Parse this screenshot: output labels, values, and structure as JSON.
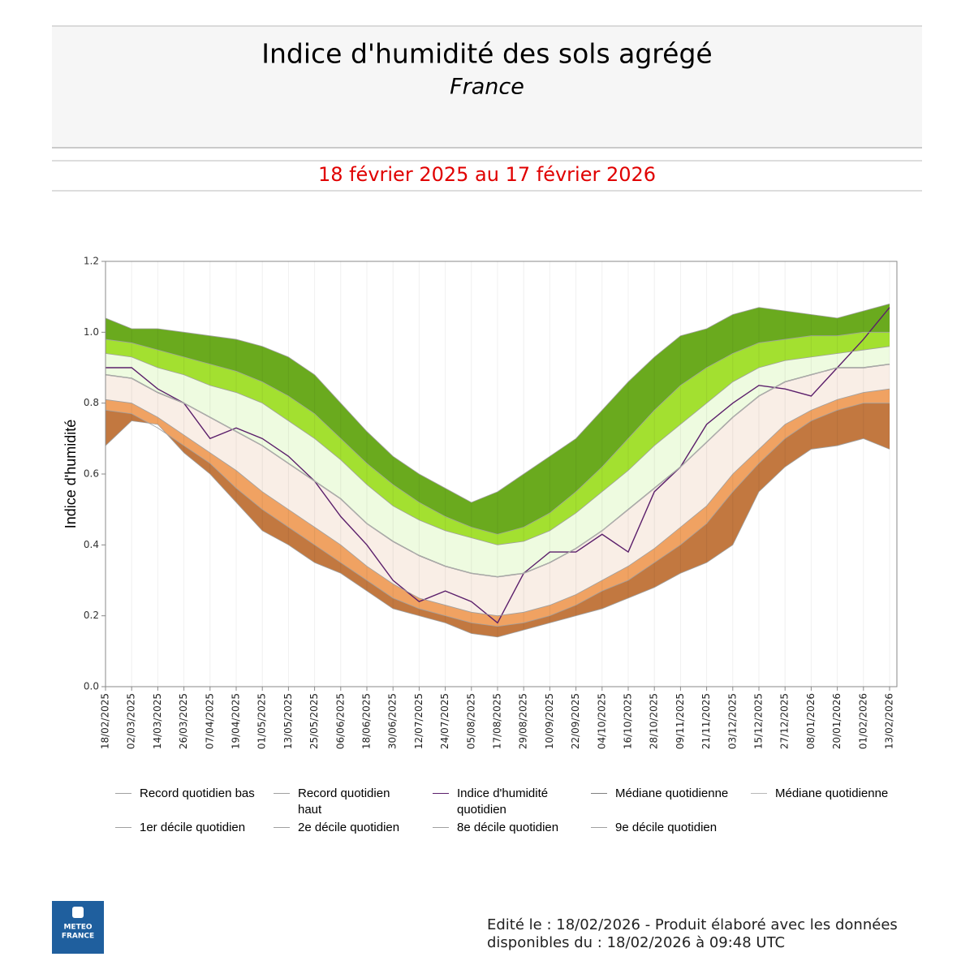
{
  "header": {
    "title": "Indice d'humidité des sols agrégé",
    "subtitle": "France"
  },
  "period": "18 février 2025 au 17 février 2026",
  "chart_data": {
    "type": "band",
    "y_label": "Indice d'humidité",
    "categories": [
      "18/02/2025",
      "02/03/2025",
      "14/03/2025",
      "26/03/2025",
      "07/04/2025",
      "19/04/2025",
      "01/05/2025",
      "13/05/2025",
      "25/05/2025",
      "06/06/2025",
      "18/06/2025",
      "30/06/2025",
      "12/07/2025",
      "24/07/2025",
      "05/08/2025",
      "17/08/2025",
      "29/08/2025",
      "10/09/2025",
      "22/09/2025",
      "04/10/2025",
      "16/10/2025",
      "28/10/2025",
      "09/11/2025",
      "21/11/2025",
      "03/12/2025",
      "15/12/2025",
      "27/12/2025",
      "08/01/2026",
      "20/01/2026",
      "01/02/2026",
      "13/02/2026"
    ],
    "ylim": [
      0,
      1.2
    ],
    "yticks": [
      {
        "value": 0,
        "label": "0.0"
      },
      {
        "value": 0.2,
        "label": "0.2"
      },
      {
        "value": 0.4,
        "label": "0.4"
      },
      {
        "value": 0.6,
        "label": "0.6"
      },
      {
        "value": 0.8,
        "label": "0.8"
      },
      {
        "value": 1,
        "label": "1.0"
      },
      {
        "value": 1.2,
        "label": "1.2"
      }
    ],
    "grid": true,
    "series": [
      {
        "name": "Record quotidien bas",
        "color": "#a0a0a0",
        "fill": "#ffffff",
        "values": [
          0.68,
          0.75,
          0.74,
          0.66,
          0.6,
          0.52,
          0.44,
          0.4,
          0.35,
          0.32,
          0.27,
          0.22,
          0.2,
          0.18,
          0.15,
          0.14,
          0.16,
          0.18,
          0.2,
          0.22,
          0.25,
          0.28,
          0.32,
          0.35,
          0.4,
          0.55,
          0.62,
          0.67,
          0.68,
          0.7,
          0.67
        ]
      },
      {
        "name": "Record quotidien haut",
        "color": "#a0a0a0",
        "fill": "#6aaa1e",
        "values": [
          1.04,
          1.01,
          1.01,
          1.0,
          0.99,
          0.98,
          0.96,
          0.93,
          0.88,
          0.8,
          0.72,
          0.65,
          0.6,
          0.56,
          0.52,
          0.55,
          0.6,
          0.65,
          0.7,
          0.78,
          0.86,
          0.93,
          0.99,
          1.01,
          1.05,
          1.07,
          1.06,
          1.05,
          1.04,
          1.06,
          1.08
        ]
      },
      {
        "name": "Indice d'humidité quotidien",
        "color": "#5b1f6b",
        "values": [
          0.9,
          0.9,
          0.84,
          0.8,
          0.7,
          0.73,
          0.7,
          0.65,
          0.58,
          0.48,
          0.4,
          0.3,
          0.24,
          0.27,
          0.24,
          0.18,
          0.32,
          0.38,
          0.38,
          0.43,
          0.38,
          0.55,
          0.62,
          0.74,
          0.8,
          0.85,
          0.84,
          0.82,
          0.9,
          0.98,
          1.07
        ]
      },
      {
        "name": "Médiane quotidienne",
        "color": "#808080",
        "values": [
          0.88,
          0.87,
          0.83,
          0.8,
          0.76,
          0.72,
          0.68,
          0.63,
          0.58,
          0.53,
          0.46,
          0.41,
          0.37,
          0.34,
          0.32,
          0.31,
          0.32,
          0.35,
          0.39,
          0.44,
          0.5,
          0.56,
          0.62,
          0.69,
          0.76,
          0.82,
          0.86,
          0.88,
          0.9,
          0.9,
          0.91
        ]
      },
      {
        "name": "Médiane quotidienne",
        "color": "#b8b8b8",
        "fill": "#f9eee6",
        "values": [
          0.88,
          0.87,
          0.83,
          0.8,
          0.76,
          0.72,
          0.68,
          0.63,
          0.58,
          0.53,
          0.46,
          0.41,
          0.37,
          0.34,
          0.32,
          0.31,
          0.32,
          0.35,
          0.39,
          0.44,
          0.5,
          0.56,
          0.62,
          0.69,
          0.76,
          0.82,
          0.86,
          0.88,
          0.9,
          0.9,
          0.91
        ]
      },
      {
        "name": "1er décile quotidien",
        "color": "#a0a0a0",
        "fill": "#c27840",
        "values": [
          0.78,
          0.77,
          0.73,
          0.68,
          0.63,
          0.56,
          0.5,
          0.45,
          0.4,
          0.35,
          0.3,
          0.25,
          0.22,
          0.2,
          0.18,
          0.17,
          0.18,
          0.2,
          0.23,
          0.27,
          0.3,
          0.35,
          0.4,
          0.46,
          0.55,
          0.63,
          0.7,
          0.75,
          0.78,
          0.8,
          0.8
        ]
      },
      {
        "name": "2e décile quotidien",
        "color": "#a0a0a0",
        "fill": "#f0a262",
        "values": [
          0.81,
          0.8,
          0.76,
          0.71,
          0.66,
          0.61,
          0.55,
          0.5,
          0.45,
          0.4,
          0.34,
          0.29,
          0.25,
          0.23,
          0.21,
          0.2,
          0.21,
          0.23,
          0.26,
          0.3,
          0.34,
          0.39,
          0.45,
          0.51,
          0.6,
          0.67,
          0.74,
          0.78,
          0.81,
          0.83,
          0.84
        ]
      },
      {
        "name": "8e décile quotidien",
        "color": "#a0a0a0",
        "fill": "#eefbe0",
        "values": [
          0.94,
          0.93,
          0.9,
          0.88,
          0.85,
          0.83,
          0.8,
          0.75,
          0.7,
          0.64,
          0.57,
          0.51,
          0.47,
          0.44,
          0.42,
          0.4,
          0.41,
          0.44,
          0.49,
          0.55,
          0.61,
          0.68,
          0.74,
          0.8,
          0.86,
          0.9,
          0.92,
          0.93,
          0.94,
          0.95,
          0.96
        ]
      },
      {
        "name": "9e décile quotidien",
        "color": "#a0a0a0",
        "fill": "#a3e030",
        "values": [
          0.98,
          0.97,
          0.95,
          0.93,
          0.91,
          0.89,
          0.86,
          0.82,
          0.77,
          0.7,
          0.63,
          0.57,
          0.52,
          0.48,
          0.45,
          0.43,
          0.45,
          0.49,
          0.55,
          0.62,
          0.7,
          0.78,
          0.85,
          0.9,
          0.94,
          0.97,
          0.98,
          0.99,
          0.99,
          1.0,
          1.0
        ]
      }
    ]
  },
  "footer": {
    "line1": "Edité le : 18/02/2026 - Produit élaboré avec les données",
    "line2": "disponibles du : 18/02/2026 à 09:48 UTC"
  },
  "logo": {
    "line1": "METEO",
    "line2": "FRANCE"
  }
}
